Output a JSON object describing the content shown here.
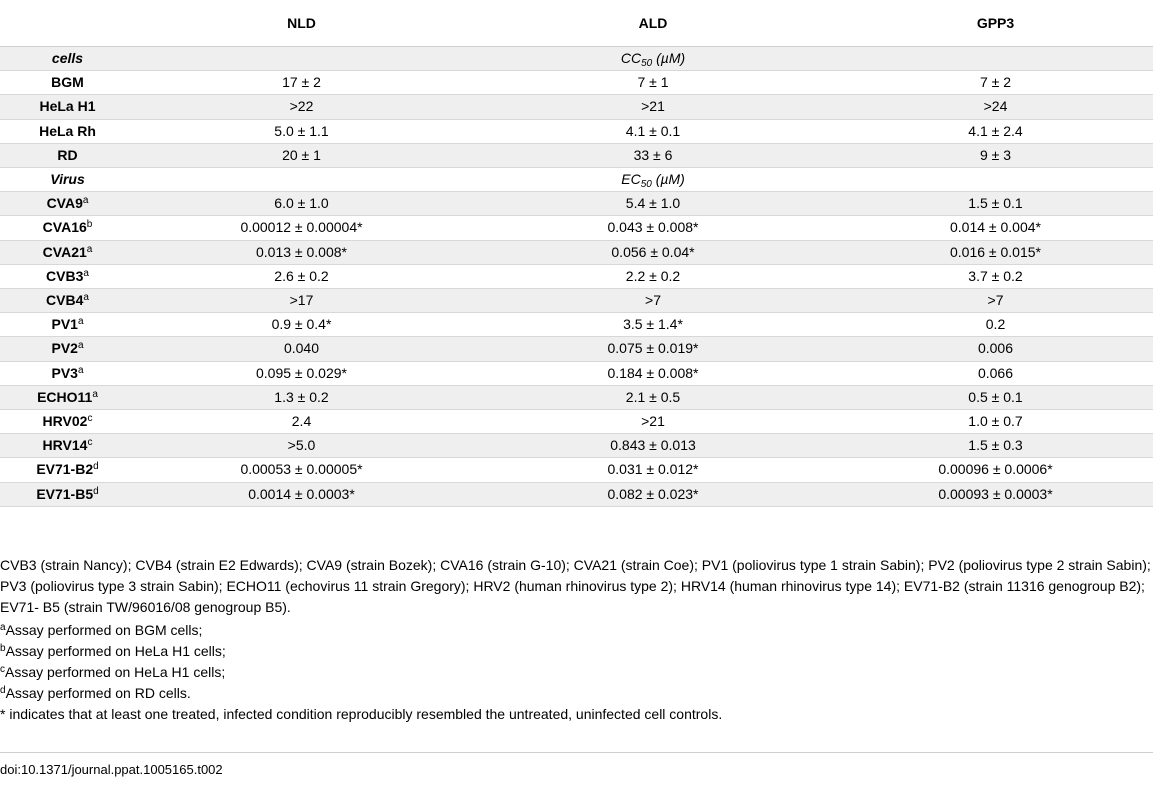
{
  "table": {
    "headers": [
      "",
      "NLD",
      "ALD",
      "GPP3"
    ],
    "section_cells": {
      "label": "cells",
      "unit_prefix": "CC",
      "unit_sub": "50",
      "unit_suffix": " (µM)"
    },
    "cell_rows": [
      {
        "name": "BGM",
        "sup": "",
        "nld": "17 ± 2",
        "ald": "7 ± 1",
        "gpp3": "7 ± 2"
      },
      {
        "name": "HeLa H1",
        "sup": "",
        "nld": ">22",
        "ald": ">21",
        "gpp3": ">24"
      },
      {
        "name": "HeLa Rh",
        "sup": "",
        "nld": "5.0 ± 1.1",
        "ald": "4.1 ± 0.1",
        "gpp3": "4.1 ± 2.4"
      },
      {
        "name": "RD",
        "sup": "",
        "nld": "20 ± 1",
        "ald": "33 ± 6",
        "gpp3": "9 ± 3"
      }
    ],
    "section_virus": {
      "label": "Virus",
      "unit_prefix": "EC",
      "unit_sub": "50",
      "unit_suffix": " (µM)"
    },
    "virus_rows": [
      {
        "name": "CVA9",
        "sup": "a",
        "nld": "6.0 ± 1.0",
        "ald": "5.4 ± 1.0",
        "gpp3": "1.5 ± 0.1"
      },
      {
        "name": "CVA16",
        "sup": "b",
        "nld": "0.00012 ± 0.00004*",
        "ald": "0.043 ± 0.008*",
        "gpp3": "0.014 ± 0.004*"
      },
      {
        "name": "CVA21",
        "sup": "a",
        "nld": "0.013 ± 0.008*",
        "ald": "0.056 ± 0.04*",
        "gpp3": "0.016 ± 0.015*"
      },
      {
        "name": "CVB3",
        "sup": "a",
        "nld": "2.6 ± 0.2",
        "ald": "2.2 ± 0.2",
        "gpp3": "3.7 ± 0.2"
      },
      {
        "name": "CVB4",
        "sup": "a",
        "nld": ">17",
        "ald": ">7",
        "gpp3": ">7"
      },
      {
        "name": "PV1",
        "sup": "a",
        "nld": "0.9 ± 0.4*",
        "ald": "3.5 ± 1.4*",
        "gpp3": "0.2"
      },
      {
        "name": "PV2",
        "sup": "a",
        "nld": "0.040",
        "ald": "0.075 ± 0.019*",
        "gpp3": "0.006"
      },
      {
        "name": "PV3",
        "sup": "a",
        "nld": "0.095 ± 0.029*",
        "ald": "0.184 ± 0.008*",
        "gpp3": "0.066"
      },
      {
        "name": "ECHO11",
        "sup": "a",
        "nld": "1.3 ± 0.2",
        "ald": "2.1 ± 0.5",
        "gpp3": "0.5 ± 0.1"
      },
      {
        "name": "HRV02",
        "sup": "c",
        "nld": "2.4",
        "ald": ">21",
        "gpp3": "1.0 ± 0.7"
      },
      {
        "name": "HRV14",
        "sup": "c",
        "nld": ">5.0",
        "ald": "0.843 ± 0.013",
        "gpp3": "1.5 ± 0.3"
      },
      {
        "name": "EV71-B2",
        "sup": "d",
        "nld": "0.00053 ± 0.00005*",
        "ald": "0.031 ± 0.012*",
        "gpp3": "0.00096 ± 0.0006*"
      },
      {
        "name": "EV71-B5",
        "sup": "d",
        "nld": "0.0014 ± 0.0003*",
        "ald": "0.082 ± 0.023*",
        "gpp3": "0.00093 ± 0.0003*"
      }
    ]
  },
  "footnotes": {
    "abbreviations": "CVB3 (strain Nancy); CVB4 (strain E2 Edwards); CVA9 (strain Bozek); CVA16 (strain G-10); CVA21 (strain Coe); PV1 (poliovirus type 1 strain Sabin); PV2 (poliovirus type 2 strain Sabin); PV3 (poliovirus type 3 strain Sabin); ECHO11 (echovirus 11 strain Gregory); HRV2 (human rhinovirus type 2); HRV14 (human rhinovirus type 14); EV71-B2 (strain 11316 genogroup B2); EV71- B5 (strain TW/96016/08 genogroup B5).",
    "notes": [
      {
        "mark": "a",
        "text": "Assay performed on BGM cells;"
      },
      {
        "mark": "b",
        "text": "Assay performed on HeLa H1 cells;"
      },
      {
        "mark": "c",
        "text": "Assay performed on HeLa H1 cells;"
      },
      {
        "mark": "d",
        "text": "Assay performed on RD cells."
      }
    ],
    "asterisk": "* indicates that at least one treated, infected condition reproducibly resembled the untreated, uninfected cell controls."
  },
  "doi": "doi:10.1371/journal.ppat.1005165.t002"
}
